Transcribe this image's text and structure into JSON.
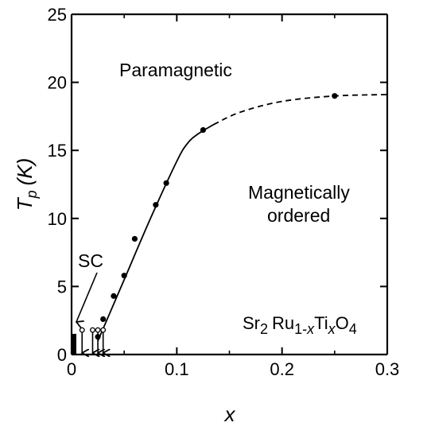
{
  "chart_data": {
    "type": "scatter",
    "xlabel": "x",
    "ylabel_main": "T",
    "ylabel_sub": "p",
    "ylabel_unit": "(K)",
    "xlim": [
      0,
      0.3
    ],
    "ylim": [
      0,
      25
    ],
    "x_ticks": [
      "0",
      "0.1",
      "0.2",
      "0.3"
    ],
    "y_ticks": [
      "0",
      "5",
      "10",
      "15",
      "20",
      "25"
    ],
    "grid": false,
    "series": [
      {
        "marker": "filled-circle",
        "points": [
          {
            "x": 0.025,
            "y": 1.3
          },
          {
            "x": 0.03,
            "y": 2.6
          },
          {
            "x": 0.04,
            "y": 4.3
          },
          {
            "x": 0.05,
            "y": 5.8
          },
          {
            "x": 0.06,
            "y": 8.5
          },
          {
            "x": 0.08,
            "y": 11.0
          },
          {
            "x": 0.09,
            "y": 12.6
          },
          {
            "x": 0.125,
            "y": 16.5
          },
          {
            "x": 0.25,
            "y": 19.0
          }
        ]
      }
    ],
    "curve_solid": [
      {
        "x": 0.025,
        "y": 1.0
      },
      {
        "x": 0.05,
        "y": 5.5
      },
      {
        "x": 0.075,
        "y": 10.0
      },
      {
        "x": 0.1,
        "y": 14.2
      },
      {
        "x": 0.11,
        "y": 15.5
      },
      {
        "x": 0.12,
        "y": 16.2
      },
      {
        "x": 0.135,
        "y": 16.9
      }
    ],
    "curve_dashed": [
      {
        "x": 0.135,
        "y": 16.9
      },
      {
        "x": 0.16,
        "y": 17.8
      },
      {
        "x": 0.2,
        "y": 18.6
      },
      {
        "x": 0.25,
        "y": 19.0
      },
      {
        "x": 0.3,
        "y": 19.1
      }
    ],
    "sc_arrows_x": [
      0.01,
      0.02,
      0.025,
      0.03
    ],
    "annotations": {
      "paramagnetic": "Paramagnetic",
      "magnetic_line1": "Magnetically",
      "magnetic_line2": "ordered",
      "sc": "SC"
    },
    "compound": {
      "a": "Sr",
      "a_sub": "2",
      "b": "Ru",
      "b_sub": "1-",
      "b_sub_var": "x",
      "c": "Ti",
      "c_sub_var": "x",
      "d": "O",
      "d_sub": "4"
    }
  }
}
